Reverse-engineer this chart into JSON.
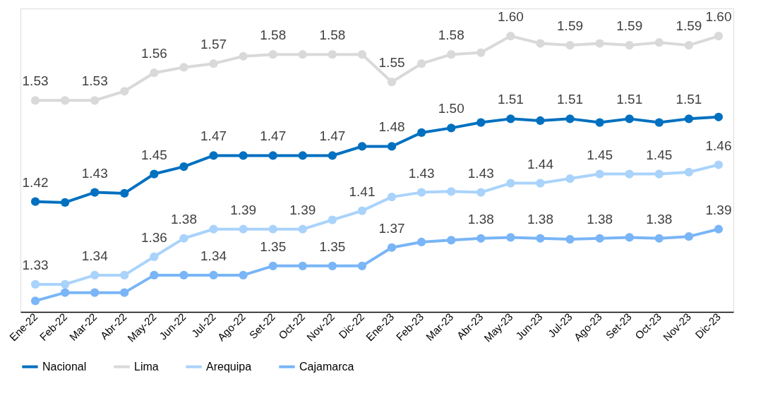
{
  "chart_data": {
    "type": "line",
    "categories": [
      "Ene-22",
      "Feb-22",
      "Mar-22",
      "Abr-22",
      "May-22",
      "Jun-22",
      "Jul-22",
      "Ago-22",
      "Set-22",
      "Oct-22",
      "Nov-22",
      "Dic-22",
      "Ene-23",
      "Feb-23",
      "Mar-23",
      "Abr-23",
      "May-23",
      "Jun-23",
      "Jul-23",
      "Ago-23",
      "Set-23",
      "Oct-23",
      "Nov-23",
      "Dic-23"
    ],
    "series": [
      {
        "name": "Nacional",
        "color": "#0070c0",
        "values": [
          1.42,
          1.419,
          1.43,
          1.429,
          1.45,
          1.458,
          1.47,
          1.47,
          1.47,
          1.47,
          1.47,
          1.48,
          1.48,
          1.495,
          1.5,
          1.506,
          1.51,
          1.508,
          1.51,
          1.506,
          1.51,
          1.506,
          1.51,
          1.512
        ],
        "value_labels": [
          "1.42",
          null,
          "1.43",
          null,
          "1.45",
          null,
          "1.47",
          null,
          "1.47",
          null,
          "1.47",
          null,
          "1.48",
          null,
          "1.50",
          null,
          "1.51",
          null,
          "1.51",
          null,
          "1.51",
          null,
          "1.51",
          null
        ]
      },
      {
        "name": "Lima",
        "color": "#d9d9d9",
        "values": [
          1.53,
          1.53,
          1.53,
          1.54,
          1.56,
          1.566,
          1.57,
          1.578,
          1.58,
          1.58,
          1.58,
          1.58,
          1.55,
          1.57,
          1.58,
          1.582,
          1.6,
          1.592,
          1.59,
          1.592,
          1.59,
          1.593,
          1.59,
          1.6
        ],
        "value_labels": [
          "1.53",
          null,
          "1.53",
          null,
          "1.56",
          null,
          "1.57",
          null,
          "1.58",
          null,
          "1.58",
          null,
          "1.55",
          null,
          "1.58",
          null,
          "1.60",
          null,
          "1.59",
          null,
          "1.59",
          null,
          "1.59",
          "1.60"
        ]
      },
      {
        "name": "Arequipa",
        "color": "#a9d3fb",
        "values": [
          1.33,
          1.33,
          1.34,
          1.34,
          1.36,
          1.38,
          1.39,
          1.39,
          1.39,
          1.39,
          1.4,
          1.41,
          1.425,
          1.43,
          1.431,
          1.43,
          1.44,
          1.44,
          1.445,
          1.45,
          1.45,
          1.45,
          1.452,
          1.46
        ],
        "value_labels": [
          "1.33",
          null,
          "1.34",
          null,
          "1.36",
          "1.38",
          null,
          "1.39",
          null,
          "1.39",
          null,
          "1.41",
          null,
          "1.43",
          null,
          "1.43",
          null,
          "1.44",
          null,
          "1.45",
          null,
          "1.45",
          null,
          "1.46"
        ]
      },
      {
        "name": "Cajamarca",
        "color": "#79b5f7",
        "values": [
          1.312,
          1.321,
          1.321,
          1.321,
          1.34,
          1.34,
          1.34,
          1.34,
          1.35,
          1.35,
          1.35,
          1.35,
          1.37,
          1.376,
          1.378,
          1.38,
          1.381,
          1.38,
          1.379,
          1.38,
          1.381,
          1.38,
          1.382,
          1.39
        ],
        "value_labels": [
          null,
          null,
          null,
          null,
          null,
          null,
          "1.34",
          null,
          "1.35",
          null,
          "1.35",
          null,
          "1.37",
          null,
          null,
          "1.38",
          null,
          "1.38",
          null,
          "1.38",
          null,
          "1.38",
          null,
          "1.39"
        ]
      }
    ],
    "ylim": [
      1.3,
      1.63
    ],
    "tick_labels": "x",
    "grid": false,
    "legend": "bottom",
    "marker": "circle",
    "line_style": "solid"
  }
}
